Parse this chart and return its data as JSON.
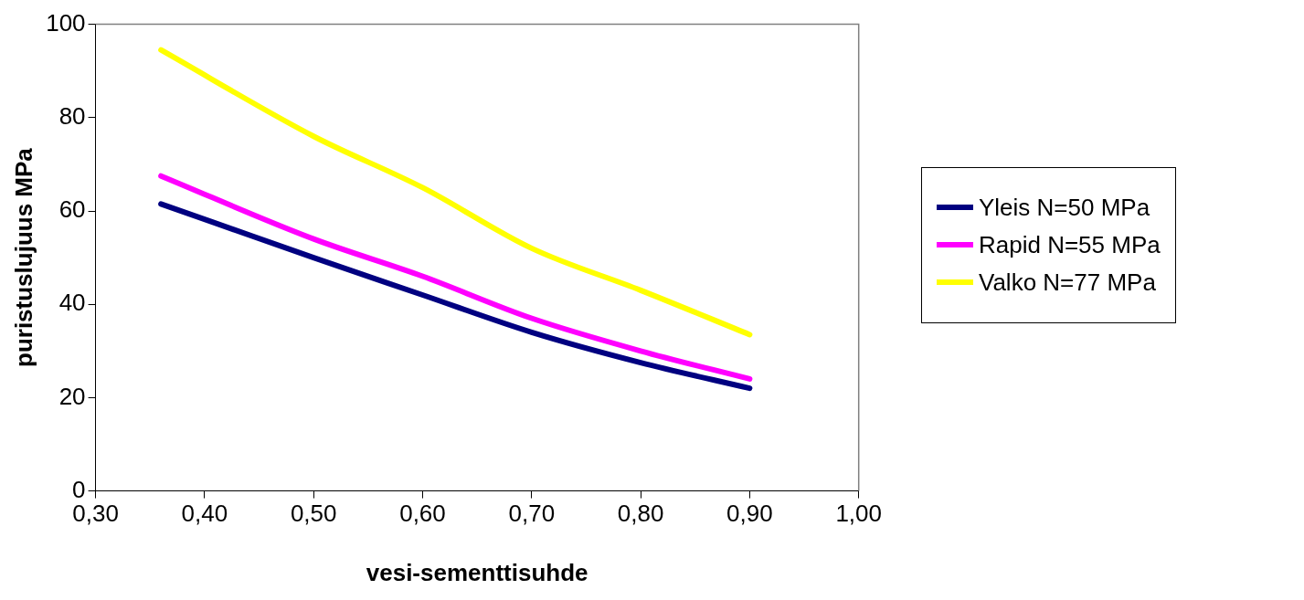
{
  "chart_data": {
    "type": "line",
    "xlabel": "vesi-sementtisuhde",
    "ylabel": "puristuslujuus MPa",
    "x": [
      0.36,
      0.5,
      0.6,
      0.7,
      0.8,
      0.9
    ],
    "series": [
      {
        "name": "Yleis N=50 MPa",
        "color": "#000080",
        "values": [
          61.5,
          50,
          42,
          34,
          27.5,
          22
        ]
      },
      {
        "name": "Rapid N=55 MPa",
        "color": "#ff00ff",
        "values": [
          67.5,
          54,
          46,
          37,
          30,
          24
        ]
      },
      {
        "name": "Valko N=77 MPa",
        "color": "#ffff00",
        "values": [
          94.5,
          76,
          65,
          52,
          43,
          33.5
        ]
      }
    ],
    "xlim": [
      0.3,
      1.0
    ],
    "xticks": [
      {
        "value": 0.3,
        "label": "0,30"
      },
      {
        "value": 0.4,
        "label": "0,40"
      },
      {
        "value": 0.5,
        "label": "0,50"
      },
      {
        "value": 0.6,
        "label": "0,60"
      },
      {
        "value": 0.7,
        "label": "0,70"
      },
      {
        "value": 0.8,
        "label": "0,80"
      },
      {
        "value": 0.9,
        "label": "0,90"
      },
      {
        "value": 1.0,
        "label": "1,00"
      }
    ],
    "ylim": [
      0,
      100
    ],
    "yticks": [
      0,
      20,
      40,
      60,
      80,
      100
    ],
    "grid": false,
    "legend": "right",
    "marker": "none",
    "line_style": "solid"
  }
}
